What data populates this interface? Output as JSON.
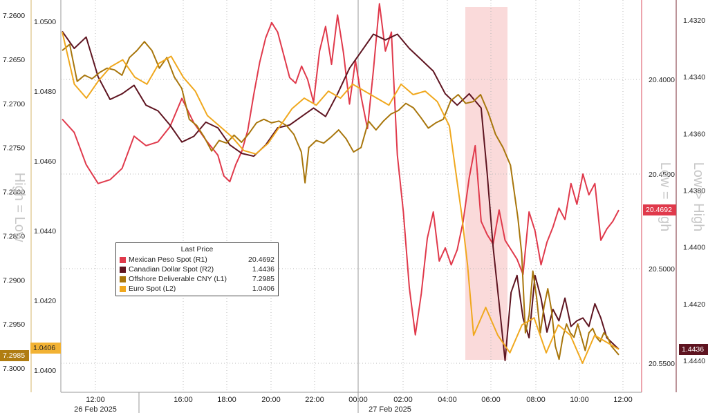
{
  "chart_data": {
    "type": "line",
    "legend": {
      "title": "Last Price",
      "placement": "center-left",
      "entries": [
        {
          "name": "Mexican Peso Spot  (R1)",
          "value": "20.4692",
          "color": "#e0394b"
        },
        {
          "name": "Canadian Dollar Spot  (R2)",
          "value": "1.4436",
          "color": "#5e1420"
        },
        {
          "name": "Offshore Deliverable CNY  (L1)",
          "value": "7.2985",
          "color": "#a8760c"
        },
        {
          "name": "Euro Spot  (L2)",
          "value": "1.0406",
          "color": "#f0a81e"
        }
      ]
    },
    "x_ticks": [
      "12:00",
      "16:00",
      "18:00",
      "20:00",
      "22:00",
      "00:00",
      "02:00",
      "04:00",
      "06:00",
      "08:00",
      "10:00",
      "12:00"
    ],
    "x_dates": [
      "26 Feb 2025",
      "27 Feb 2025"
    ],
    "axes": {
      "L1": {
        "ticks": [
          "7.2600",
          "7.2650",
          "7.2700",
          "7.2750",
          "7.2800",
          "7.2850",
          "7.2900",
          "7.2950",
          "7.3000"
        ],
        "inverted": true,
        "range": [
          7.2594,
          7.3008
        ]
      },
      "L2": {
        "ticks": [
          "1.0500",
          "1.0480",
          "1.0460",
          "1.0440",
          "1.0420",
          "1.0400"
        ],
        "range": [
          1.0386,
          1.0507
        ]
      },
      "R1": {
        "ticks": [
          "20.4000",
          "20.4500",
          "20.5000",
          "20.5500"
        ],
        "inverted": true,
        "range": [
          20.3575,
          20.5615
        ]
      },
      "R2": {
        "ticks": [
          "1.4320",
          "1.4340",
          "1.4360",
          "1.4380",
          "1.4400",
          "1.4420",
          "1.4440"
        ],
        "inverted": true,
        "range": [
          1.4317,
          1.4443
        ]
      }
    },
    "axis_titles": {
      "left": "High = Low",
      "right_inner": "Low = High",
      "right_outer": "Low > High"
    },
    "last_tags": {
      "L1": "7.2985",
      "L2": "1.0406",
      "R1": "20.4692",
      "R2": "1.4436"
    },
    "highlight_window": [
      "05:00",
      "07:00"
    ],
    "grid": "dotted",
    "series": [
      {
        "name": "Mexican Peso Spot  (R1)",
        "axis": "R1",
        "color": "#e0394b",
        "points": [
          [
            0,
            20.421
          ],
          [
            2,
            20.428
          ],
          [
            4,
            20.445
          ],
          [
            6,
            20.455
          ],
          [
            8,
            20.453
          ],
          [
            10,
            20.447
          ],
          [
            12,
            20.43
          ],
          [
            14,
            20.435
          ],
          [
            16,
            20.433
          ],
          [
            18,
            20.425
          ],
          [
            20,
            20.41
          ],
          [
            22,
            20.423
          ],
          [
            24,
            20.432
          ],
          [
            26,
            20.44
          ],
          [
            27,
            20.451
          ],
          [
            28,
            20.454
          ],
          [
            29,
            20.445
          ],
          [
            30,
            20.438
          ],
          [
            31,
            20.427
          ],
          [
            32,
            20.408
          ],
          [
            33,
            20.391
          ],
          [
            34,
            20.378
          ],
          [
            35,
            20.37
          ],
          [
            36,
            20.375
          ],
          [
            37,
            20.387
          ],
          [
            38,
            20.399
          ],
          [
            39,
            20.402
          ],
          [
            40,
            20.393
          ],
          [
            41,
            20.4
          ],
          [
            42,
            20.412
          ],
          [
            43,
            20.385
          ],
          [
            44,
            20.372
          ],
          [
            45,
            20.392
          ],
          [
            46,
            20.366
          ],
          [
            47,
            20.386
          ],
          [
            48,
            20.413
          ],
          [
            49,
            20.39
          ],
          [
            50,
            20.41
          ],
          [
            51,
            20.426
          ],
          [
            52,
            20.395
          ],
          [
            53,
            20.36
          ],
          [
            54,
            20.385
          ],
          [
            55,
            20.375
          ],
          [
            56,
            20.44
          ],
          [
            57,
            20.47
          ],
          [
            58,
            20.51
          ],
          [
            59,
            20.535
          ],
          [
            60,
            20.513
          ],
          [
            61,
            20.484
          ],
          [
            62,
            20.47
          ],
          [
            63,
            20.496
          ],
          [
            64,
            20.489
          ],
          [
            65,
            20.498
          ],
          [
            66,
            20.49
          ],
          [
            67,
            20.475
          ],
          [
            68,
            20.452
          ],
          [
            69,
            20.435
          ],
          [
            70,
            20.475
          ],
          [
            71,
            20.482
          ],
          [
            72,
            20.487
          ],
          [
            73,
            20.469
          ],
          [
            74,
            20.485
          ],
          [
            75,
            20.49
          ],
          [
            76,
            20.495
          ],
          [
            77,
            20.503
          ],
          [
            78,
            20.47
          ],
          [
            79,
            20.48
          ],
          [
            80,
            20.498
          ],
          [
            81,
            20.486
          ],
          [
            82,
            20.478
          ],
          [
            83,
            20.468
          ],
          [
            84,
            20.474
          ],
          [
            85,
            20.455
          ],
          [
            86,
            20.466
          ],
          [
            87,
            20.45
          ],
          [
            88,
            20.461
          ],
          [
            89,
            20.455
          ],
          [
            90,
            20.485
          ],
          [
            91,
            20.479
          ],
          [
            92,
            20.475
          ],
          [
            93,
            20.469
          ]
        ]
      },
      {
        "name": "Canadian Dollar Spot  (R2)",
        "axis": "R2",
        "color": "#5e1420",
        "points": [
          [
            0,
            1.4324
          ],
          [
            2,
            1.433
          ],
          [
            4,
            1.4326
          ],
          [
            6,
            1.434
          ],
          [
            8,
            1.4348
          ],
          [
            10,
            1.4346
          ],
          [
            12,
            1.4343
          ],
          [
            14,
            1.435
          ],
          [
            16,
            1.4352
          ],
          [
            18,
            1.4357
          ],
          [
            20,
            1.4363
          ],
          [
            22,
            1.4361
          ],
          [
            24,
            1.4356
          ],
          [
            26,
            1.4358
          ],
          [
            28,
            1.4364
          ],
          [
            30,
            1.4367
          ],
          [
            32,
            1.4368
          ],
          [
            34,
            1.4364
          ],
          [
            36,
            1.4358
          ],
          [
            38,
            1.4357
          ],
          [
            40,
            1.4354
          ],
          [
            42,
            1.4351
          ],
          [
            44,
            1.4354
          ],
          [
            46,
            1.4346
          ],
          [
            48,
            1.4337
          ],
          [
            50,
            1.4331
          ],
          [
            52,
            1.4325
          ],
          [
            54,
            1.4327
          ],
          [
            56,
            1.4325
          ],
          [
            58,
            1.433
          ],
          [
            60,
            1.4334
          ],
          [
            62,
            1.4338
          ],
          [
            64,
            1.4346
          ],
          [
            66,
            1.435
          ],
          [
            68,
            1.4346
          ],
          [
            70,
            1.4351
          ],
          [
            71,
            1.4374
          ],
          [
            72,
            1.44
          ],
          [
            73,
            1.442
          ],
          [
            74,
            1.444
          ],
          [
            75,
            1.4416
          ],
          [
            76,
            1.441
          ],
          [
            77,
            1.4425
          ],
          [
            78,
            1.4432
          ],
          [
            79,
            1.441
          ],
          [
            80,
            1.4418
          ],
          [
            81,
            1.443
          ],
          [
            82,
            1.4422
          ],
          [
            83,
            1.4426
          ],
          [
            84,
            1.4418
          ],
          [
            85,
            1.4428
          ],
          [
            86,
            1.4426
          ],
          [
            87,
            1.4425
          ],
          [
            88,
            1.4428
          ],
          [
            89,
            1.442
          ],
          [
            90,
            1.4425
          ],
          [
            91,
            1.4432
          ],
          [
            92,
            1.4434
          ],
          [
            93,
            1.4436
          ]
        ]
      },
      {
        "name": "Offshore Deliverable CNY  (L1)",
        "axis": "L1",
        "color": "#a8760c",
        "points": [
          [
            0,
            7.264
          ],
          [
            2,
            7.2633
          ],
          [
            4,
            7.2675
          ],
          [
            6,
            7.2668
          ],
          [
            8,
            7.2672
          ],
          [
            10,
            7.2665
          ],
          [
            12,
            7.266
          ],
          [
            14,
            7.2662
          ],
          [
            16,
            7.2668
          ],
          [
            18,
            7.2648
          ],
          [
            20,
            7.264
          ],
          [
            22,
            7.263
          ],
          [
            24,
            7.264
          ],
          [
            26,
            7.266
          ],
          [
            28,
            7.2648
          ],
          [
            30,
            7.267
          ],
          [
            32,
            7.2683
          ],
          [
            34,
            7.2718
          ],
          [
            36,
            7.2725
          ],
          [
            38,
            7.2738
          ],
          [
            40,
            7.2754
          ],
          [
            42,
            7.2742
          ],
          [
            44,
            7.2745
          ],
          [
            46,
            7.2736
          ],
          [
            48,
            7.2744
          ],
          [
            50,
            7.2734
          ],
          [
            52,
            7.2722
          ],
          [
            54,
            7.2718
          ],
          [
            56,
            7.2722
          ],
          [
            58,
            7.272
          ],
          [
            60,
            7.2725
          ],
          [
            62,
            7.2735
          ],
          [
            64,
            7.2755
          ],
          [
            65,
            7.279
          ],
          [
            66,
            7.275
          ],
          [
            68,
            7.2742
          ],
          [
            70,
            7.2745
          ],
          [
            72,
            7.2738
          ],
          [
            74,
            7.273
          ],
          [
            76,
            7.274
          ],
          [
            78,
            7.2755
          ],
          [
            80,
            7.275
          ],
          [
            82,
            7.272
          ],
          [
            84,
            7.273
          ],
          [
            86,
            7.272
          ],
          [
            88,
            7.2712
          ],
          [
            90,
            7.2708
          ],
          [
            92,
            7.27
          ],
          [
            94,
            7.2705
          ],
          [
            96,
            7.2716
          ],
          [
            98,
            7.2728
          ],
          [
            100,
            7.2722
          ],
          [
            102,
            7.2718
          ],
          [
            104,
            7.2697
          ],
          [
            106,
            7.269
          ],
          [
            108,
            7.27
          ],
          [
            110,
            7.2698
          ],
          [
            112,
            7.269
          ],
          [
            114,
            7.271
          ],
          [
            116,
            7.2735
          ],
          [
            118,
            7.275
          ],
          [
            120,
            7.277
          ],
          [
            122,
            7.283
          ],
          [
            123,
            7.287
          ],
          [
            124,
            7.296
          ],
          [
            125,
            7.294
          ],
          [
            126,
            7.289
          ],
          [
            127,
            7.292
          ],
          [
            128,
            7.296
          ],
          [
            129,
            7.293
          ],
          [
            130,
            7.291
          ],
          [
            131,
            7.2935
          ],
          [
            132,
            7.2975
          ],
          [
            133,
            7.299
          ],
          [
            134,
            7.2965
          ],
          [
            135,
            7.295
          ],
          [
            136,
            7.296
          ],
          [
            137,
            7.2965
          ],
          [
            138,
            7.295
          ],
          [
            139,
            7.2965
          ],
          [
            140,
            7.298
          ],
          [
            141,
            7.296
          ],
          [
            142,
            7.2955
          ],
          [
            143,
            7.2965
          ],
          [
            144,
            7.297
          ],
          [
            145,
            7.296
          ],
          [
            146,
            7.2965
          ],
          [
            147,
            7.2975
          ],
          [
            148,
            7.298
          ],
          [
            149,
            7.2985
          ]
        ]
      },
      {
        "name": "Euro Spot  (L2)",
        "axis": "L2",
        "color": "#f0a81e",
        "points": [
          [
            0,
            1.0497
          ],
          [
            2,
            1.0482
          ],
          [
            4,
            1.0478
          ],
          [
            6,
            1.0483
          ],
          [
            8,
            1.0487
          ],
          [
            10,
            1.0489
          ],
          [
            12,
            1.0484
          ],
          [
            14,
            1.0482
          ],
          [
            16,
            1.0488
          ],
          [
            18,
            1.049
          ],
          [
            20,
            1.0484
          ],
          [
            22,
            1.048
          ],
          [
            24,
            1.0473
          ],
          [
            26,
            1.047
          ],
          [
            28,
            1.0467
          ],
          [
            30,
            1.0463
          ],
          [
            32,
            1.0462
          ],
          [
            34,
            1.0465
          ],
          [
            36,
            1.047
          ],
          [
            38,
            1.0475
          ],
          [
            40,
            1.0478
          ],
          [
            42,
            1.0476
          ],
          [
            44,
            1.048
          ],
          [
            46,
            1.0478
          ],
          [
            48,
            1.0482
          ],
          [
            50,
            1.048
          ],
          [
            52,
            1.0478
          ],
          [
            54,
            1.0476
          ],
          [
            56,
            1.0482
          ],
          [
            58,
            1.0479
          ],
          [
            60,
            1.048
          ],
          [
            62,
            1.0477
          ],
          [
            64,
            1.047
          ],
          [
            66,
            1.0445
          ],
          [
            67,
            1.043
          ],
          [
            68,
            1.041
          ],
          [
            70,
            1.0418
          ],
          [
            72,
            1.041
          ],
          [
            74,
            1.0405
          ],
          [
            76,
            1.0413
          ],
          [
            78,
            1.0415
          ],
          [
            80,
            1.0405
          ],
          [
            82,
            1.0413
          ],
          [
            84,
            1.041
          ],
          [
            86,
            1.0402
          ],
          [
            88,
            1.041
          ],
          [
            90,
            1.0408
          ],
          [
            92,
            1.0406
          ]
        ]
      }
    ]
  }
}
